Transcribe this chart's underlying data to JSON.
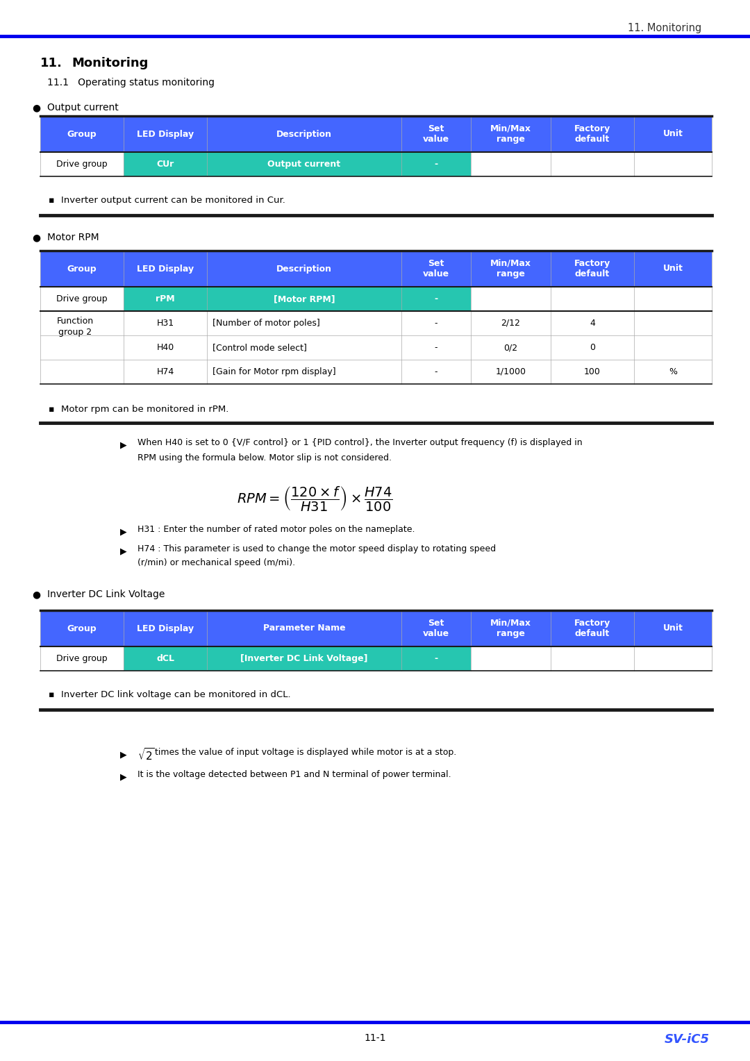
{
  "page_header": "11. Monitoring",
  "header_line_color": "#0000EE",
  "section_number": "11.",
  "section_title": "Monitoring",
  "subsection": "11.1   Operating status monitoring",
  "header_bg": "#4466FF",
  "teal_color": "#26C6B0",
  "col_headers": [
    "Group",
    "LED Display",
    "Description",
    "Set\nvalue",
    "Min/Max\nrange",
    "Factory\ndefault",
    "Unit"
  ],
  "col_headers3": [
    "Group",
    "LED Display",
    "Parameter Name",
    "Set\nvalue",
    "Min/Max\nrange",
    "Factory\ndefault",
    "Unit"
  ],
  "table1_title": "Output current",
  "note1": "Inverter output current can be monitored in Cur.",
  "table2_title": "Motor RPM",
  "note2": "Motor rpm can be monitored in rPM.",
  "arrow_note1_line1": "When H40 is set to 0 {V/F control} or 1 {PID control}, the Inverter output frequency (f) is displayed in",
  "arrow_note1_line2": "RPM using the formula below. Motor slip is not considered.",
  "arrow_note2": "H31 : Enter the number of rated motor poles on the nameplate.",
  "arrow_note3_line1": "H74 : This parameter is used to change the motor speed display to rotating speed",
  "arrow_note3_line2": "(r/min) or mechanical speed (m/mi).",
  "table3_title": "Inverter DC Link Voltage",
  "note3": "Inverter DC link voltage can be monitored in dCL.",
  "sqrt2_note": "times the value of input voltage is displayed while motor is at a stop.",
  "terminal_note": "It is the voltage detected between P1 and N terminal of power terminal.",
  "footer_page": "11-1",
  "footer_model": "SV-iC5",
  "footer_model_color": "#3355FF",
  "bg_color": "#FFFFFF",
  "dark_border": "#1A1A1A",
  "light_border": "#AAAAAA"
}
